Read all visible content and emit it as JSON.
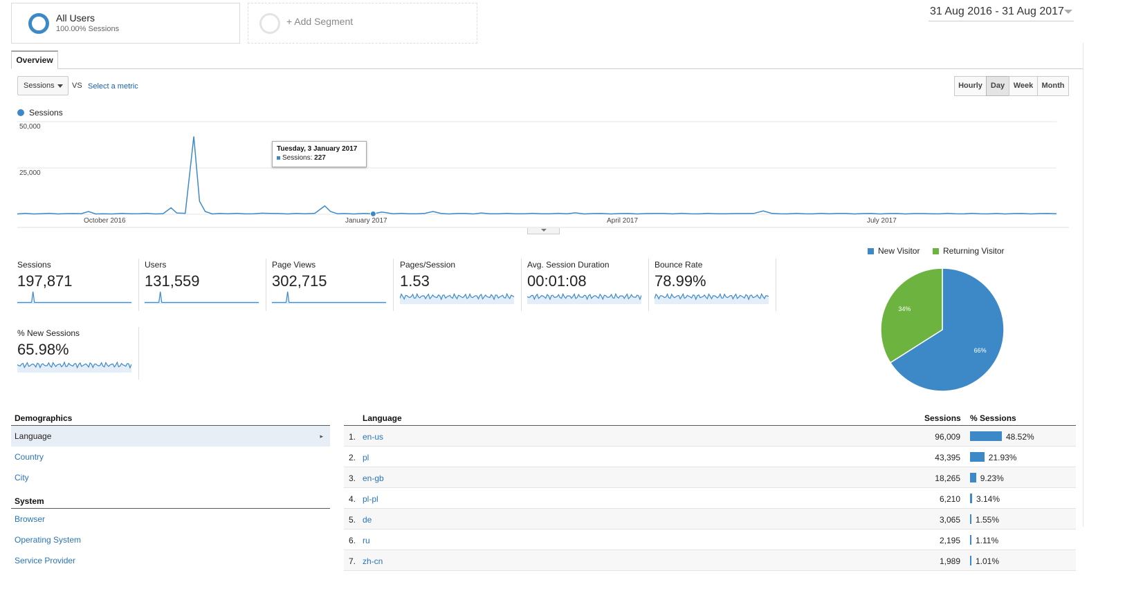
{
  "segments": {
    "all_users": {
      "title": "All Users",
      "subtitle": "100.00% Sessions"
    },
    "add_segment": "+ Add Segment"
  },
  "date_range": "31 Aug 2016 - 31 Aug 2017",
  "tabs": {
    "overview": "Overview"
  },
  "controls": {
    "metric_select": "Sessions",
    "vs": "VS",
    "select_metric": "Select a metric",
    "periods": [
      {
        "label": "Hourly",
        "active": false
      },
      {
        "label": "Day",
        "active": true
      },
      {
        "label": "Week",
        "active": false
      },
      {
        "label": "Month",
        "active": false
      }
    ]
  },
  "colors": {
    "primary": "#3d89c7",
    "new_visitor": "#3d89c7",
    "returning_visitor": "#6db33f",
    "link": "#2874b8"
  },
  "chart_data": [
    {
      "type": "line",
      "series": [
        {
          "name": "Sessions",
          "points": [
            {
              "x": "2016-08-31",
              "y": 200
            },
            {
              "x": "2016-09-20",
              "y": 400
            },
            {
              "x": "2016-09-25",
              "y": 1500
            },
            {
              "x": "2016-09-30",
              "y": 300
            },
            {
              "x": "2016-10-10",
              "y": 300
            },
            {
              "x": "2016-10-24",
              "y": 3500
            },
            {
              "x": "2016-10-26",
              "y": 700
            },
            {
              "x": "2016-11-01",
              "y": 42000
            },
            {
              "x": "2016-11-03",
              "y": 7000
            },
            {
              "x": "2016-11-05",
              "y": 1500
            },
            {
              "x": "2016-11-10",
              "y": 500
            },
            {
              "x": "2016-11-25",
              "y": 600
            },
            {
              "x": "2016-12-10",
              "y": 300
            },
            {
              "x": "2016-12-17",
              "y": 4500
            },
            {
              "x": "2016-12-19",
              "y": 1500
            },
            {
              "x": "2016-12-24",
              "y": 400
            },
            {
              "x": "2017-01-03",
              "y": 227
            },
            {
              "x": "2017-01-06",
              "y": 1200
            },
            {
              "x": "2017-01-10",
              "y": 300
            },
            {
              "x": "2017-01-24",
              "y": 1500
            },
            {
              "x": "2017-02-10",
              "y": 700
            },
            {
              "x": "2017-03-15",
              "y": 800
            },
            {
              "x": "2017-04-15",
              "y": 500
            },
            {
              "x": "2017-05-10",
              "y": 400
            },
            {
              "x": "2017-05-20",
              "y": 1800
            },
            {
              "x": "2017-06-15",
              "y": 500
            },
            {
              "x": "2017-07-15",
              "y": 400
            },
            {
              "x": "2017-08-10",
              "y": 500
            },
            {
              "x": "2017-08-31",
              "y": 300
            }
          ]
        }
      ],
      "x_ticks": [
        "October 2016",
        "January 2017",
        "April 2017",
        "July 2017"
      ],
      "y_ticks": [
        "25,000",
        "50,000"
      ],
      "ylim": [
        0,
        50000
      ],
      "grid": true,
      "legend": "top-left",
      "tooltip": {
        "title": "Tuesday, 3 January 2017",
        "label": "Sessions:",
        "value": "227"
      }
    },
    {
      "type": "pie",
      "slices": [
        {
          "name": "New Visitor",
          "value": 66,
          "label": "66%"
        },
        {
          "name": "Returning Visitor",
          "value": 34,
          "label": "34%"
        }
      ],
      "legend": "top"
    }
  ],
  "metrics": [
    {
      "name": "Sessions",
      "value": "197,871",
      "spark": "spike"
    },
    {
      "name": "Users",
      "value": "131,559",
      "spark": "spike"
    },
    {
      "name": "Page Views",
      "value": "302,715",
      "spark": "spike"
    },
    {
      "name": "Pages/Session",
      "value": "1.53",
      "spark": "noise"
    },
    {
      "name": "Avg. Session Duration",
      "value": "00:01:08",
      "spark": "noise"
    },
    {
      "name": "Bounce Rate",
      "value": "78.99%",
      "spark": "noise"
    },
    {
      "name": "% New Sessions",
      "value": "65.98%",
      "spark": "noise"
    }
  ],
  "demographics": {
    "heading": "Demographics",
    "items": [
      {
        "label": "Language",
        "active": true
      },
      {
        "label": "Country",
        "active": false
      },
      {
        "label": "City",
        "active": false
      }
    ]
  },
  "system": {
    "heading": "System",
    "items": [
      {
        "label": "Browser"
      },
      {
        "label": "Operating System"
      },
      {
        "label": "Service Provider"
      }
    ]
  },
  "table": {
    "headers": {
      "language": "Language",
      "sessions": "Sessions",
      "pct_sessions": "% Sessions"
    },
    "rows": [
      {
        "idx": "1.",
        "language": "en-us",
        "sessions": "96,009",
        "pct": "48.52%",
        "fraction": 0.4852
      },
      {
        "idx": "2.",
        "language": "pl",
        "sessions": "43,395",
        "pct": "21.93%",
        "fraction": 0.2193
      },
      {
        "idx": "3.",
        "language": "en-gb",
        "sessions": "18,265",
        "pct": "9.23%",
        "fraction": 0.0923
      },
      {
        "idx": "4.",
        "language": "pl-pl",
        "sessions": "6,210",
        "pct": "3.14%",
        "fraction": 0.0314
      },
      {
        "idx": "5.",
        "language": "de",
        "sessions": "3,065",
        "pct": "1.55%",
        "fraction": 0.0155
      },
      {
        "idx": "6.",
        "language": "ru",
        "sessions": "2,195",
        "pct": "1.11%",
        "fraction": 0.0111
      },
      {
        "idx": "7.",
        "language": "zh-cn",
        "sessions": "1,989",
        "pct": "1.01%",
        "fraction": 0.0101
      }
    ]
  }
}
